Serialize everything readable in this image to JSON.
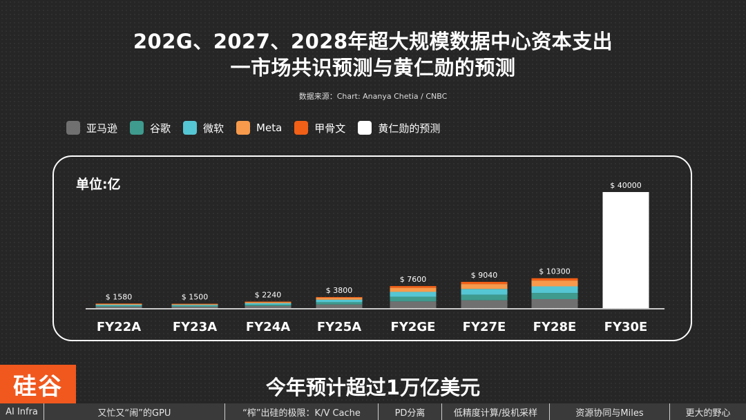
{
  "title_line1": "202G、2027、2028年超大规模数据中心资本支出",
  "title_line2": "一市场共识预测与黄仁勋的预测",
  "source": "数据来源：Chart: Ananya Chetia / CNBC",
  "unit_label": "单位:亿",
  "legend": [
    {
      "label": "亚马逊",
      "color": "#707070"
    },
    {
      "label": "谷歌",
      "color": "#3e9b8e"
    },
    {
      "label": "微软",
      "color": "#55c6d3"
    },
    {
      "label": "Meta",
      "color": "#f79a4c"
    },
    {
      "label": "甲骨文",
      "color": "#f25f16"
    },
    {
      "label": "黄仁勋的预测",
      "color": "#ffffff"
    }
  ],
  "chart_data": {
    "type": "bar",
    "stacked": true,
    "categories": [
      "FY22A",
      "FY23A",
      "FY24A",
      "FY25A",
      "FY2GE",
      "FY27E",
      "FY28E",
      "FY30E"
    ],
    "totals": [
      1580,
      1500,
      2240,
      3800,
      7600,
      9040,
      10300,
      40000
    ],
    "total_labels": [
      "$ 1580",
      "$ 1500",
      "$ 2240",
      "$ 3800",
      "$ 7600",
      "$ 9040",
      "$ 10300",
      "$ 40000"
    ],
    "series": [
      {
        "name": "亚马逊",
        "color": "#707070",
        "values": [
          500,
          480,
          750,
          1250,
          2300,
          2700,
          3100,
          0
        ]
      },
      {
        "name": "谷歌",
        "color": "#3e9b8e",
        "values": [
          300,
          300,
          450,
          800,
          1600,
          1900,
          2100,
          0
        ]
      },
      {
        "name": "微软",
        "color": "#55c6d3",
        "values": [
          350,
          330,
          500,
          850,
          1700,
          2000,
          2300,
          0
        ]
      },
      {
        "name": "Meta",
        "color": "#f79a4c",
        "values": [
          300,
          280,
          400,
          650,
          1400,
          1700,
          2000,
          0
        ]
      },
      {
        "name": "甲骨文",
        "color": "#f25f16",
        "values": [
          130,
          110,
          140,
          250,
          600,
          740,
          800,
          0
        ]
      },
      {
        "name": "黄仁勋的预测",
        "color": "#ffffff",
        "values": [
          0,
          0,
          0,
          0,
          0,
          0,
          0,
          40000
        ]
      }
    ],
    "ylim": [
      0,
      40000
    ],
    "xlabel": "",
    "ylabel": ""
  },
  "logo_text": "硅谷",
  "subtitle": "今年预计超过1万亿美元",
  "nav": [
    "AI Infra",
    "又忙又“闹”的GPU",
    "“榨”出硅的极限：K/V Cache",
    "PD分离",
    "低精度计算/投机采样",
    "资源协同与Miles",
    "更大的野心"
  ]
}
